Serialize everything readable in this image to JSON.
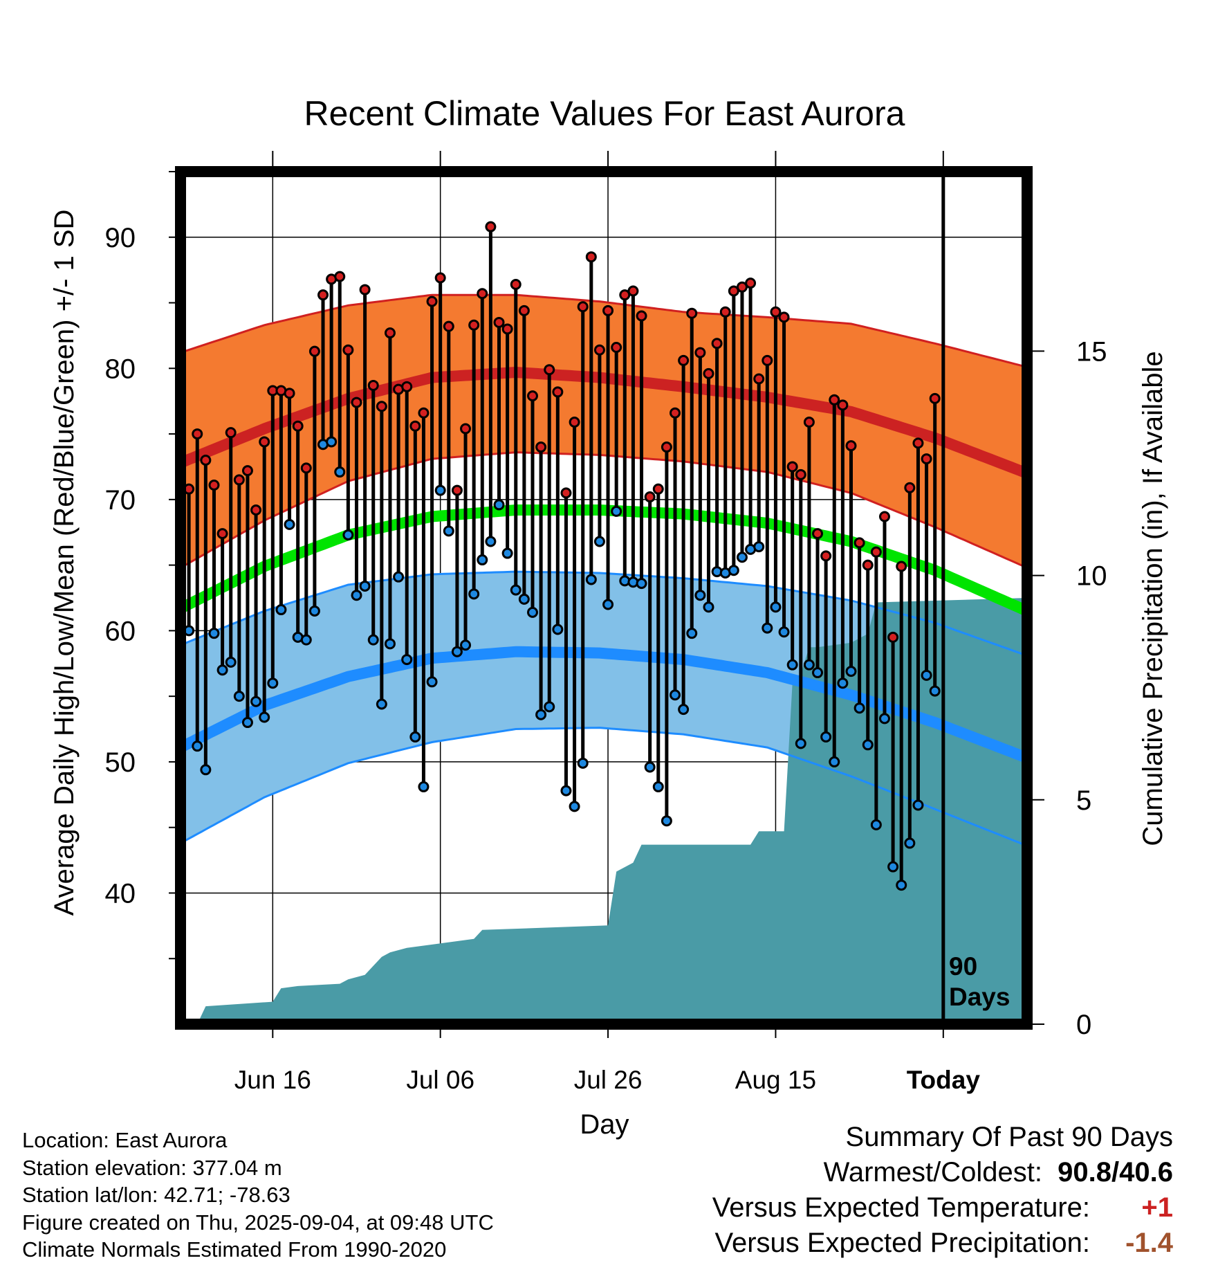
{
  "chart_data": {
    "type": "line",
    "title": "Recent Climate Values For East Aurora",
    "xlabel": "Day",
    "ylabel": "Average Daily High/Low/Mean (Red/Blue/Green) +/- 1 SD",
    "y2label": "Cumulative Precipitation (in), If Available",
    "ylim": [
      30,
      95
    ],
    "y2lim": [
      0,
      19
    ],
    "y_ticks": [
      40,
      50,
      60,
      70,
      80,
      90
    ],
    "y2_ticks": [
      0,
      5,
      10,
      15
    ],
    "x_range_days": [
      0,
      101
    ],
    "x_ticks": [
      {
        "day": 11,
        "label": "Jun 16"
      },
      {
        "day": 31,
        "label": "Jul 06"
      },
      {
        "day": 51,
        "label": "Jul 26"
      },
      {
        "day": 71,
        "label": "Aug 15"
      },
      {
        "day": 91,
        "label": "Today"
      }
    ],
    "today_day": 91,
    "period_label": [
      "90",
      "Days"
    ],
    "grid": true,
    "normals": {
      "days": [
        0,
        10,
        20,
        30,
        40,
        50,
        60,
        70,
        80,
        90,
        101
      ],
      "high_mean": [
        72.8,
        75.4,
        77.7,
        79.3,
        79.7,
        79.3,
        78.6,
        77.8,
        76.7,
        74.7,
        72.0
      ],
      "high_upper": [
        81.2,
        83.3,
        84.8,
        85.6,
        85.6,
        85.1,
        84.3,
        83.9,
        83.4,
        81.9,
        80.1
      ],
      "high_lower": [
        64.8,
        68.4,
        71.4,
        73.1,
        73.6,
        73.4,
        72.9,
        72.1,
        70.5,
        67.9,
        64.8
      ],
      "mean_normal": [
        61.7,
        64.9,
        67.3,
        68.7,
        69.2,
        69.2,
        68.9,
        68.2,
        66.8,
        64.6,
        61.5
      ],
      "low_mean": [
        51.1,
        54.3,
        56.5,
        57.9,
        58.4,
        58.3,
        57.8,
        56.8,
        55.1,
        53.0,
        50.3
      ],
      "low_upper": [
        58.9,
        61.5,
        63.5,
        64.3,
        64.5,
        64.4,
        64.0,
        63.4,
        62.3,
        60.6,
        58.1
      ],
      "low_lower": [
        43.8,
        47.3,
        49.9,
        51.5,
        52.5,
        52.6,
        52.1,
        51.1,
        48.9,
        46.4,
        43.6
      ]
    },
    "series": [
      {
        "name": "High",
        "values": [
          70.8,
          75.0,
          73.0,
          71.1,
          67.4,
          75.1,
          71.5,
          72.2,
          69.2,
          74.4,
          78.3,
          78.3,
          78.1,
          75.6,
          72.4,
          81.3,
          85.6,
          86.8,
          87.0,
          81.4,
          77.4,
          86.0,
          78.7,
          77.1,
          82.7,
          78.4,
          78.6,
          75.6,
          76.6,
          85.1,
          86.9,
          83.2,
          70.7,
          75.4,
          83.3,
          85.7,
          90.8,
          83.5,
          83.0,
          86.4,
          84.4,
          77.9,
          74.0,
          79.9,
          78.2,
          70.5,
          75.9,
          84.7,
          88.5,
          81.4,
          84.4,
          81.6,
          85.6,
          85.9,
          84.0,
          70.2,
          70.8,
          74.0,
          76.6,
          80.6,
          84.2,
          81.2,
          79.6,
          81.9,
          84.3,
          85.9,
          86.2,
          86.5,
          79.2,
          80.6,
          84.3,
          83.9,
          72.5,
          71.9,
          75.9,
          67.4,
          65.7,
          77.6,
          77.2,
          74.1,
          66.7,
          65.0,
          66.0,
          68.7,
          59.5,
          64.9,
          70.9,
          74.3,
          73.1,
          77.7
        ]
      },
      {
        "name": "Low",
        "values": [
          60.0,
          51.2,
          49.4,
          59.8,
          57.0,
          57.6,
          55.0,
          53.0,
          54.6,
          53.4,
          56.0,
          61.6,
          68.1,
          59.5,
          59.3,
          61.5,
          74.2,
          74.4,
          72.1,
          67.3,
          62.7,
          63.4,
          59.3,
          54.4,
          59.0,
          64.1,
          57.8,
          51.9,
          48.1,
          56.1,
          70.7,
          67.6,
          58.4,
          58.9,
          62.8,
          65.4,
          66.8,
          69.6,
          65.9,
          63.1,
          62.4,
          61.4,
          53.6,
          54.2,
          60.1,
          47.8,
          46.6,
          49.9,
          63.9,
          66.8,
          62.0,
          69.1,
          63.8,
          63.7,
          63.6,
          49.6,
          48.1,
          45.5,
          55.1,
          54.0,
          59.8,
          62.7,
          61.8,
          64.5,
          64.4,
          64.6,
          65.6,
          66.2,
          66.4,
          60.2,
          61.8,
          59.9,
          57.4,
          51.4,
          57.4,
          56.8,
          51.9,
          50.0,
          56.0,
          56.9,
          54.1,
          51.3,
          45.2,
          53.3,
          42.0,
          40.6,
          43.8,
          46.7,
          56.6,
          55.4
        ]
      },
      {
        "name": "Cumulative Precipitation",
        "days": [
          0,
          2,
          3,
          11,
          12,
          14,
          19,
          20,
          22,
          24,
          25,
          27,
          35,
          36,
          51,
          52,
          54,
          55,
          68,
          69,
          72,
          73,
          74,
          75,
          76,
          80,
          82,
          83,
          101
        ],
        "values": [
          0,
          0,
          0.4,
          0.5,
          0.8,
          0.85,
          0.9,
          1.0,
          1.1,
          1.5,
          1.6,
          1.7,
          1.9,
          2.1,
          2.2,
          3.4,
          3.6,
          4.0,
          4.0,
          4.3,
          4.3,
          7.6,
          7.8,
          8.4,
          8.4,
          8.5,
          8.7,
          9.4,
          9.5
        ]
      }
    ],
    "colors": {
      "high_band": "#f47a30",
      "high_line": "#cc2222",
      "mean_line": "#00e400",
      "low_band": "#82c0e8",
      "low_line": "#1e8cff",
      "low_edge": "#1e8cff",
      "high_edge": "#d02020",
      "precip": "#4a9ba6",
      "high_marker": "#d42020",
      "low_marker": "#1e88e0",
      "positive": "#cc2222",
      "negative": "#a0522d"
    }
  },
  "footer": {
    "location": "Location: East Aurora",
    "elevation": "Station elevation: 377.04 m",
    "latlon": "Station lat/lon: 42.71; -78.63",
    "created": "Figure created on Thu, 2025-09-04, at 09:48 UTC",
    "normals": "Climate Normals Estimated From 1990-2020"
  },
  "summary": {
    "heading": "Summary Of Past 90 Days",
    "warm_cold_label": "Warmest/Coldest:",
    "warm_cold_value": "90.8/40.6",
    "temp_label": "Versus Expected Temperature:",
    "temp_value": "+1",
    "precip_label": "Versus Expected Precipitation:",
    "precip_value": "-1.4"
  }
}
